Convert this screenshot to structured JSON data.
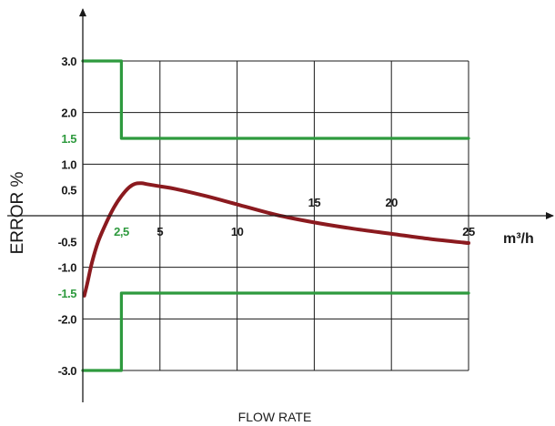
{
  "chart_data": {
    "type": "line",
    "xlabel": "FLOW RATE",
    "ylabel": "ERROR %",
    "unit_label": "m³/h",
    "xlim": [
      0,
      25
    ],
    "ylim": [
      -3.0,
      3.0
    ],
    "grid": true,
    "x_gridlines": [
      5,
      10,
      15,
      20,
      25
    ],
    "y_gridlines": [
      3.0,
      2.0,
      1.0,
      -1.0,
      -2.0,
      -3.0
    ],
    "x_ticks": [
      {
        "value": 2.5,
        "label": "2,5",
        "color": "#2e9a3e",
        "side": "below"
      },
      {
        "value": 5,
        "label": "5",
        "color": "#1a1a1a",
        "side": "below"
      },
      {
        "value": 10,
        "label": "10",
        "color": "#1a1a1a",
        "side": "below"
      },
      {
        "value": 15,
        "label": "15",
        "color": "#1a1a1a",
        "side": "above"
      },
      {
        "value": 20,
        "label": "20",
        "color": "#1a1a1a",
        "side": "above"
      },
      {
        "value": 25,
        "label": "25",
        "color": "#1a1a1a",
        "side": "below"
      }
    ],
    "y_ticks": [
      {
        "value": 3.0,
        "label": "3.0",
        "color": "#1a1a1a"
      },
      {
        "value": 2.0,
        "label": "2.0",
        "color": "#1a1a1a"
      },
      {
        "value": 1.5,
        "label": "1.5",
        "color": "#2e9a3e"
      },
      {
        "value": 1.0,
        "label": "1.0",
        "color": "#1a1a1a"
      },
      {
        "value": 0.5,
        "label": "0.5",
        "color": "#1a1a1a"
      },
      {
        "value": -0.5,
        "label": "-0.5",
        "color": "#1a1a1a"
      },
      {
        "value": -1.0,
        "label": "-1.0",
        "color": "#1a1a1a"
      },
      {
        "value": -1.5,
        "label": "-1.5",
        "color": "#2e9a3e"
      },
      {
        "value": -2.0,
        "label": "-2.0",
        "color": "#1a1a1a"
      },
      {
        "value": -3.0,
        "label": "-3.0",
        "color": "#1a1a1a"
      }
    ],
    "series": [
      {
        "color": "#8b1a1f",
        "kind": "curve",
        "x": [
          0.1,
          0.3,
          0.6,
          1.0,
          1.5,
          2.0,
          2.5,
          3.0,
          3.4,
          3.8,
          4.2,
          5.0,
          6.0,
          8.0,
          10.0,
          12.5,
          15.0,
          17.5,
          20.0,
          22.5,
          25.0
        ],
        "y": [
          -1.55,
          -1.3,
          -0.9,
          -0.5,
          -0.15,
          0.15,
          0.38,
          0.55,
          0.62,
          0.63,
          0.61,
          0.57,
          0.52,
          0.38,
          0.22,
          0.02,
          -0.13,
          -0.25,
          -0.35,
          -0.45,
          -0.53
        ]
      },
      {
        "color": "#2e9a3e",
        "kind": "step",
        "x": [
          0,
          2.5,
          2.5,
          25
        ],
        "y": [
          3.0,
          3.0,
          1.5,
          1.5
        ]
      },
      {
        "color": "#2e9a3e",
        "kind": "step",
        "x": [
          0,
          2.5,
          2.5,
          25
        ],
        "y": [
          -3.0,
          -3.0,
          -1.5,
          -1.5
        ]
      }
    ]
  }
}
